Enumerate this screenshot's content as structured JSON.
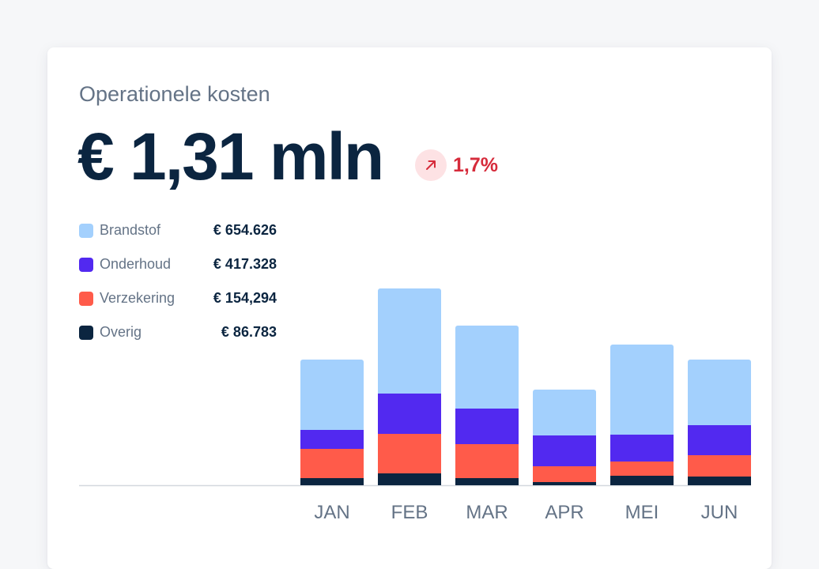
{
  "card": {
    "title": "Operationele kosten",
    "total": "€ 1,31 mln",
    "change": {
      "value": "1,7%",
      "direction": "up",
      "icon": "arrow-up-right-icon",
      "color": "#d62b3b",
      "background": "#fde2e4"
    }
  },
  "chart_data": {
    "type": "bar",
    "stacked": true,
    "categories": [
      "JAN",
      "FEB",
      "MAR",
      "APR",
      "MEI",
      "JUN"
    ],
    "series": [
      {
        "name": "Overig",
        "color": "#0b2540",
        "values": [
          9,
          15,
          9,
          4,
          12,
          11
        ]
      },
      {
        "name": "Verzekering",
        "color": "#ff5b4a",
        "values": [
          37,
          50,
          43,
          20,
          18,
          27
        ]
      },
      {
        "name": "Onderhoud",
        "color": "#5229f0",
        "values": [
          24,
          51,
          45,
          39,
          34,
          38
        ]
      },
      {
        "name": "Brandstof",
        "color": "#a3d0fd",
        "values": [
          89,
          133,
          105,
          58,
          114,
          83
        ]
      }
    ],
    "legend": [
      {
        "name": "Brandstof",
        "value": "€ 654.626",
        "color": "#a3d0fd"
      },
      {
        "name": "Onderhoud",
        "value": "€ 417.328",
        "color": "#5229f0"
      },
      {
        "name": "Verzekering",
        "value": "€ 154,294",
        "color": "#ff5b4a"
      },
      {
        "name": "Overig",
        "value": "€ 86.783",
        "color": "#0b2540"
      }
    ],
    "legend_position": "top-left",
    "ylim": [
      0,
      260
    ],
    "grid": false,
    "xlabel": "",
    "ylabel": ""
  }
}
